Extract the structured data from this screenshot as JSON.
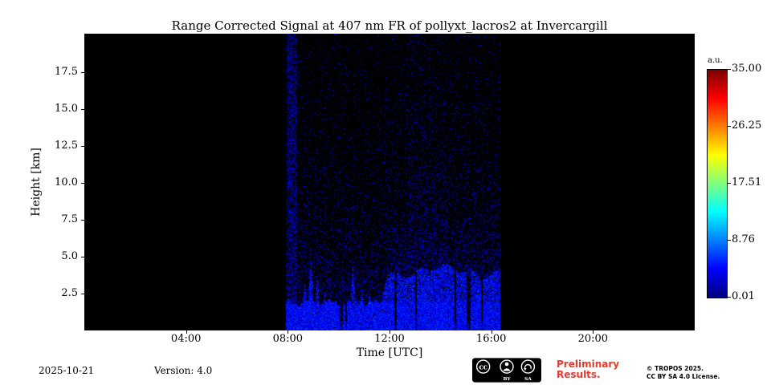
{
  "chart_data": {
    "type": "heatmap",
    "title": "Range Corrected Signal at 407 nm FR of pollyxt_lacros2 at Invercargill",
    "xlabel": "Time [UTC]",
    "ylabel": "Height [km]",
    "background": "#000000",
    "x_range_hours": [
      0,
      24
    ],
    "y_range_km": [
      0,
      20.1
    ],
    "x_ticks": [
      {
        "hour": 4,
        "label": "04:00"
      },
      {
        "hour": 8,
        "label": "08:00"
      },
      {
        "hour": 12,
        "label": "12:00"
      },
      {
        "hour": 16,
        "label": "16:00"
      },
      {
        "hour": 20,
        "label": "20:00"
      }
    ],
    "y_ticks": [
      {
        "km": 17.5,
        "label": "17.5"
      },
      {
        "km": 15.0,
        "label": "15.0"
      },
      {
        "km": 12.5,
        "label": "12.5"
      },
      {
        "km": 10.0,
        "label": "10.0"
      },
      {
        "km": 7.5,
        "label": "7.5"
      },
      {
        "km": 5.0,
        "label": "5.0"
      },
      {
        "km": 2.5,
        "label": "2.5"
      }
    ],
    "colorbar": {
      "label": "a.u.",
      "ticks": [
        "35.00",
        "26.25",
        "17.51",
        "8.76",
        "0.01"
      ],
      "colormap": "jet",
      "range": [
        0.01,
        35.0
      ]
    },
    "measurement": {
      "start_hour": 7.92,
      "end_hour": 16.33,
      "noise_stripe": [
        7.95,
        8.35
      ],
      "dense_plume": [
        12.6,
        14.2
      ],
      "surface_layer": {
        "low_top_km": 1.9,
        "high_top_km": 4.05,
        "transition_hour": 11.6
      },
      "spikes": [
        [
          8.65,
          3.2
        ],
        [
          8.9,
          4.8
        ],
        [
          9.15,
          3.6
        ],
        [
          9.45,
          2.8
        ],
        [
          10.55,
          4.4
        ],
        [
          10.9,
          3.0
        ],
        [
          11.2,
          2.6
        ]
      ],
      "gaps": [
        [
          10.03,
          10.16
        ],
        [
          10.24,
          10.31
        ],
        [
          12.18,
          12.26
        ],
        [
          13.0,
          13.06
        ],
        [
          14.53,
          14.6
        ],
        [
          15.03,
          15.16
        ],
        [
          15.58,
          15.66
        ]
      ]
    },
    "seed": 7
  },
  "footer": {
    "date": "2025-10-21",
    "version": "Version: 4.0",
    "preliminary_line1": "Preliminary",
    "preliminary_line2": "Results.",
    "preliminary_color": "#e8392f",
    "license_line1": "© TROPOS 2025.",
    "license_line2": "CC BY SA 4.0 License.",
    "cc_badge": {
      "cc": "cc",
      "by": "BY",
      "sa": "SA"
    }
  }
}
